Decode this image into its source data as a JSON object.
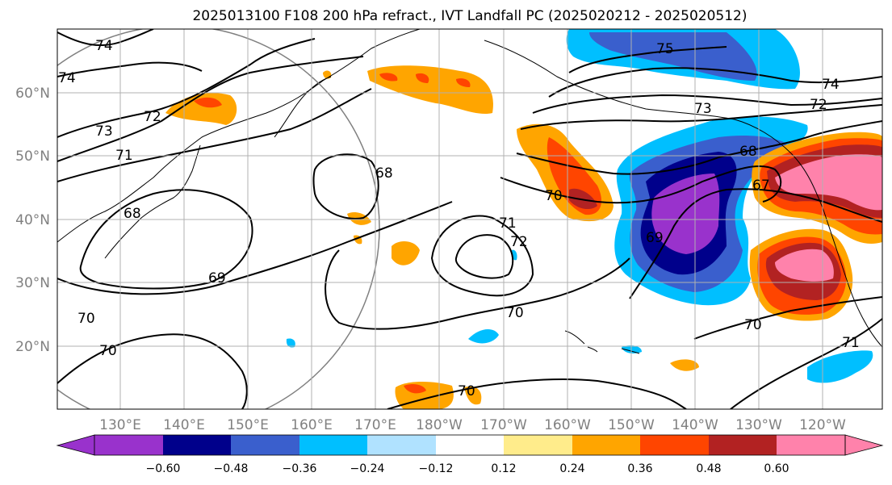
{
  "title": "2025013100 F108 200 hPa refract., IVT Landfall PC (2025020212 - 2025020512)",
  "map": {
    "lon_labels": [
      "130°E",
      "140°E",
      "150°E",
      "160°E",
      "170°E",
      "180°W",
      "170°W",
      "160°W",
      "150°W",
      "140°W",
      "130°W",
      "120°W"
    ],
    "lat_labels": [
      "60°N",
      "50°N",
      "40°N",
      "30°N",
      "20°N"
    ],
    "contour_labels": [
      "74",
      "74",
      "73",
      "72",
      "71",
      "68",
      "69",
      "68",
      "70",
      "70",
      "71",
      "72",
      "70",
      "70",
      "75",
      "74",
      "73",
      "72",
      "68",
      "67",
      "69",
      "70",
      "71",
      "70"
    ]
  },
  "colorbar": {
    "colors": [
      "#9932cc",
      "#00008b",
      "#3a5fcd",
      "#00bfff",
      "#b0e2ff",
      "#ffffff",
      "#ffec8b",
      "#ffa500",
      "#ff4500",
      "#b22222",
      "#ff82ab"
    ],
    "tick_labels": [
      "−0.60",
      "−0.48",
      "−0.36",
      "−0.24",
      "−0.12",
      "0.12",
      "0.24",
      "0.36",
      "0.48",
      "0.60"
    ]
  }
}
